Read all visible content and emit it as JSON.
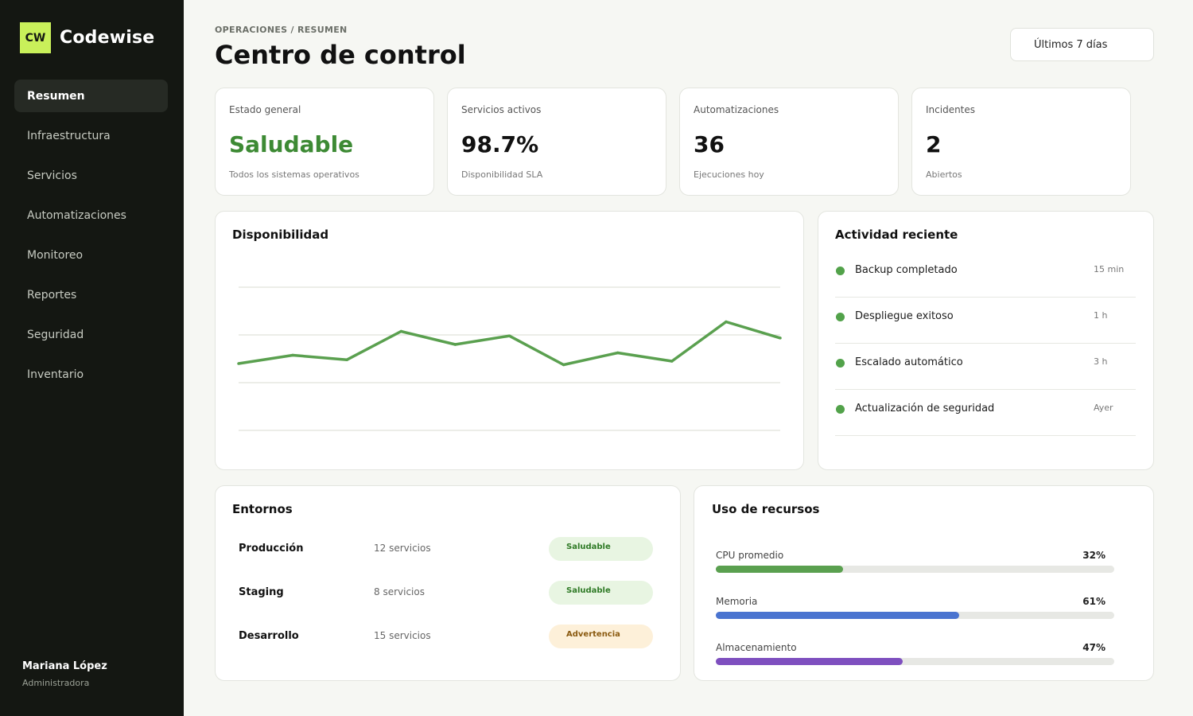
{
  "app": {
    "logo_text": "CW",
    "name": "Codewise"
  },
  "nav": [
    {
      "label": "Resumen",
      "active": true
    },
    {
      "label": "Infraestructura",
      "active": false
    },
    {
      "label": "Servicios",
      "active": false
    },
    {
      "label": "Automatizaciones",
      "active": false
    },
    {
      "label": "Monitoreo",
      "active": false
    },
    {
      "label": "Reportes",
      "active": false
    },
    {
      "label": "Seguridad",
      "active": false
    },
    {
      "label": "Inventario",
      "active": false
    }
  ],
  "user": {
    "name": "Mariana López",
    "role": "Administradora"
  },
  "header": {
    "breadcrumb": "OPERACIONES / RESUMEN",
    "title": "Centro de control",
    "range": "Últimos 7 días"
  },
  "kpis": [
    {
      "label": "Estado general",
      "value": "Saludable",
      "sub": "Todos los sistemas operativos",
      "color": "#3d8a34"
    },
    {
      "label": "Servicios activos",
      "value": "98.7%",
      "sub": "Disponibilidad SLA"
    },
    {
      "label": "Automatizaciones",
      "value": "36",
      "sub": "Ejecuciones hoy"
    },
    {
      "label": "Incidentes",
      "value": "2",
      "sub": "Abiertos"
    }
  ],
  "availability": {
    "title": "Disponibilidad"
  },
  "chart_data": {
    "type": "line",
    "x": [
      1,
      2,
      3,
      4,
      5,
      6,
      7,
      8,
      9,
      10,
      11
    ],
    "series": [
      {
        "values": [
          58,
          61.5,
          59.6,
          71.5,
          66,
          69.6,
          57.5,
          62.5,
          59,
          75.5,
          68.7
        ]
      }
    ],
    "ylim": [
      30,
      90
    ],
    "grid": true,
    "color": "#5aa04f"
  },
  "activity": {
    "title": "Actividad reciente",
    "items": [
      {
        "label": "Backup completado",
        "time": "15 min"
      },
      {
        "label": "Despliegue exitoso",
        "time": "1 h"
      },
      {
        "label": "Escalado automático",
        "time": "3 h"
      },
      {
        "label": "Actualización de seguridad",
        "time": "Ayer"
      }
    ]
  },
  "environments": {
    "title": "Entornos",
    "items": [
      {
        "name": "Producción",
        "count": "12 servicios",
        "status": "Saludable",
        "kind": "ok"
      },
      {
        "name": "Staging",
        "count": "8 servicios",
        "status": "Saludable",
        "kind": "ok"
      },
      {
        "name": "Desarrollo",
        "count": "15 servicios",
        "status": "Advertencia",
        "kind": "warn"
      }
    ]
  },
  "resources": {
    "title": "Uso de recursos",
    "items": [
      {
        "label": "CPU promedio",
        "pct": "32%",
        "value": 0.32,
        "color": "#5aa04f"
      },
      {
        "label": "Memoria",
        "pct": "61%",
        "value": 0.61,
        "color": "#4a74d0"
      },
      {
        "label": "Almacenamiento",
        "pct": "47%",
        "value": 0.47,
        "color": "#7e4fbf"
      }
    ]
  }
}
